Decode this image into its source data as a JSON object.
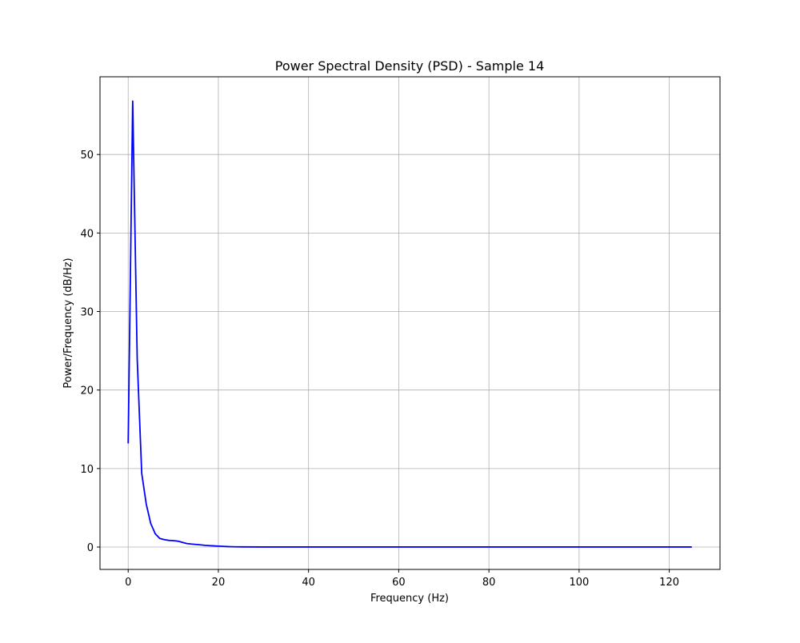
{
  "chart_data": {
    "type": "line",
    "title": "Power Spectral Density (PSD) - Sample 14",
    "xlabel": "Frequency (Hz)",
    "ylabel": "Power/Frequency (dB/Hz)",
    "xlim": [
      -6.25,
      131.25
    ],
    "ylim": [
      -2.85,
      59.9
    ],
    "x_ticks": [
      0,
      20,
      40,
      60,
      80,
      100,
      120
    ],
    "y_ticks": [
      0,
      10,
      20,
      30,
      40,
      50
    ],
    "grid": true,
    "series": [
      {
        "color": "#0000ff",
        "x": [
          0,
          1,
          2,
          3,
          4,
          5,
          6,
          7,
          8,
          9,
          10,
          11,
          12,
          13,
          14,
          15,
          16,
          17,
          18,
          19,
          20,
          21,
          22,
          23,
          24,
          25,
          30,
          40,
          50,
          60,
          70,
          80,
          90,
          100,
          110,
          120,
          125
        ],
        "y": [
          13.2,
          56.8,
          24.0,
          9.4,
          5.5,
          3.0,
          1.7,
          1.1,
          0.95,
          0.85,
          0.82,
          0.75,
          0.6,
          0.45,
          0.38,
          0.33,
          0.28,
          0.22,
          0.18,
          0.15,
          0.12,
          0.09,
          0.06,
          0.04,
          0.03,
          0.02,
          0.01,
          0.01,
          0.01,
          0.01,
          0.01,
          0.01,
          0.01,
          0.01,
          0.01,
          0.01,
          0.01
        ]
      }
    ]
  }
}
